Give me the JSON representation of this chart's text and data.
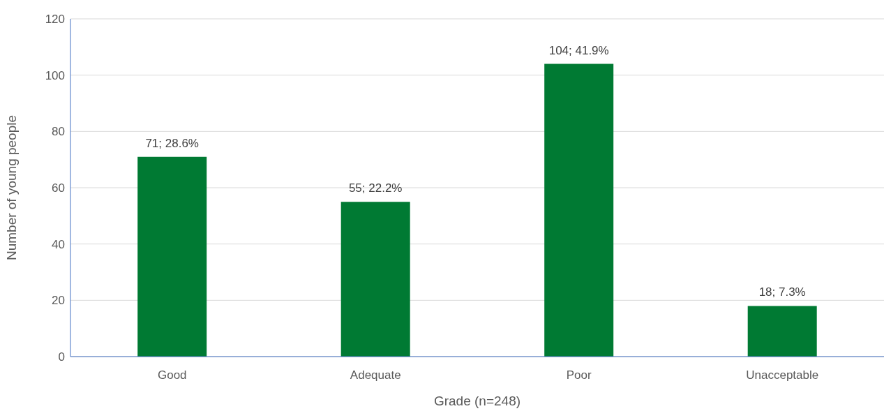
{
  "chart_data": {
    "type": "bar",
    "xlabel": "Grade (n=248)",
    "ylabel": "Number of young people",
    "categories": [
      "Good",
      "Adequate",
      "Poor",
      "Unacceptable"
    ],
    "values": [
      71,
      55,
      104,
      18
    ],
    "value_labels": [
      "71; 28.6%",
      "55; 22.2%",
      "104; 41.9%",
      "18; 7.3%"
    ],
    "color": "#007a33",
    "ylim": [
      0,
      120
    ],
    "yticks": [
      0,
      20,
      40,
      60,
      80,
      100,
      120
    ],
    "grid": "y",
    "legend": false
  }
}
